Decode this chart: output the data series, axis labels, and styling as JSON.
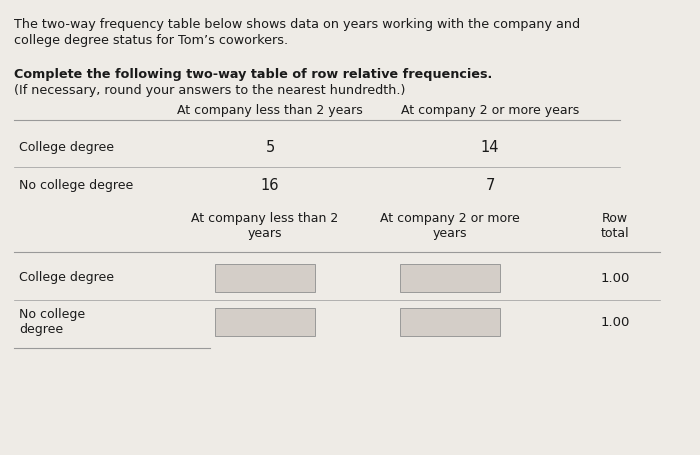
{
  "title_line1": "The two-way frequency table below shows data on years working with the company and",
  "title_line2": "college degree status for Tom’s coworkers.",
  "instruction_bold": "Complete the following two-way table of row relative frequencies.",
  "instruction_normal": "(If necessary, round your answers to the nearest hundredth.)",
  "top_col_headers": [
    "At company less than 2 years",
    "At company 2 or more years"
  ],
  "top_rows": [
    {
      "label": "College degree",
      "v1": "5",
      "v2": "14"
    },
    {
      "label": "No college degree",
      "v1": "16",
      "v2": "7"
    }
  ],
  "bot_col_headers": [
    "At company less than 2\nyears",
    "At company 2 or more\nyears",
    "Row\ntotal"
  ],
  "bot_rows": [
    {
      "label": "College degree",
      "total": "1.00"
    },
    {
      "label": "No college\ndegree",
      "total": "1.00"
    }
  ],
  "bg_color": "#eeebe6",
  "box_fill": "#d4cec8",
  "line_color": "#999999",
  "text_color": "#1a1a1a",
  "title_fontsize": 9.2,
  "instr_fontsize": 9.2,
  "table_fontsize": 9.0,
  "value_fontsize": 10.5
}
